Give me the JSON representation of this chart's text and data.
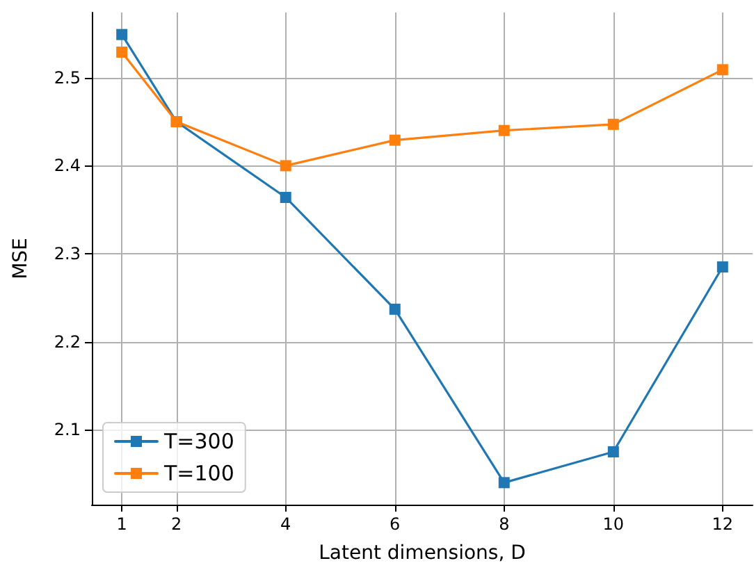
{
  "chart_data": {
    "type": "line",
    "xlabel": "Latent dimensions, D",
    "ylabel": "MSE",
    "x": [
      1,
      2,
      4,
      6,
      8,
      10,
      12
    ],
    "series": [
      {
        "name": "T=300",
        "color": "#1f77b4",
        "values": [
          2.549,
          2.45,
          2.364,
          2.237,
          2.04,
          2.075,
          2.285
        ]
      },
      {
        "name": "T=100",
        "color": "#ff7f0e",
        "values": [
          2.529,
          2.45,
          2.4,
          2.429,
          2.44,
          2.447,
          2.509
        ]
      }
    ],
    "xlim": [
      0.45,
      12.55
    ],
    "xticks": [
      1,
      2,
      4,
      6,
      8,
      10,
      12
    ],
    "ylim": [
      2.015,
      2.574
    ],
    "yticks": [
      2.1,
      2.2,
      2.3,
      2.4,
      2.5
    ],
    "grid": true,
    "legend": "bottom left",
    "marker": "square",
    "line_style": "solid"
  }
}
